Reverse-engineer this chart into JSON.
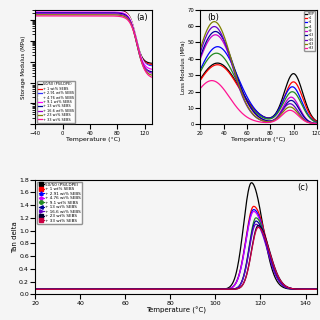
{
  "labels": [
    "50/50 (PS/LDPE)",
    "+ 1 wt% SEBS",
    "+ 2.91 wt% SEBS",
    "+ 4.76 wt% SEBS",
    "+ 9.1 wt% SEBS",
    "+ 13 wt% SEBS",
    "+ 16.6 wt% SEBS",
    "+ 23 wt% SEBS",
    "+ 33 wt% SEBS"
  ],
  "colors_a": [
    "black",
    "red",
    "#3333ff",
    "white",
    "#ff00ff",
    "#000099",
    "#9900cc",
    "#808000",
    "#ff1493"
  ],
  "colors_b": [
    "black",
    "red",
    "blue",
    "#228B22",
    "#cc00cc",
    "#000099",
    "#6600cc",
    "#808000",
    "#ff1493"
  ],
  "colors_c": [
    "black",
    "red",
    "blue",
    "#cc00ff",
    "#228B22",
    "#000099",
    "#6600cc",
    "#000033",
    "#cc0044"
  ],
  "markers_c": [
    "s",
    "s",
    "^",
    "p",
    "o",
    "<",
    ">",
    "s",
    "s"
  ],
  "background": "#f5f5f5",
  "panel_a": {
    "title": "(a)",
    "xlabel": "Temperature (°C)",
    "xlim": [
      -40,
      130
    ],
    "ylim_log": [
      10000000.0,
      3000000000.0
    ],
    "xticks": [
      -40,
      0,
      40,
      80,
      120
    ]
  },
  "panel_b": {
    "title": "(b)",
    "xlabel": "Temperature (°C)",
    "ylabel": "Loss Modulus (MPa)",
    "xlim": [
      20,
      120
    ],
    "ylim": [
      0,
      70
    ],
    "xticks": [
      20,
      40,
      60,
      80,
      100,
      120
    ]
  },
  "panel_c": {
    "title": "(c)",
    "xlabel": "Temperature (°C)",
    "ylabel": "Tan delta",
    "xlim": [
      20,
      145
    ],
    "ylim": [
      0.0,
      1.8
    ],
    "xticks": [
      20,
      40,
      60,
      80,
      100,
      120,
      140
    ],
    "yticks": [
      0.0,
      0.2,
      0.4,
      0.6,
      0.8,
      1.0,
      1.2,
      1.4,
      1.6,
      1.8
    ]
  }
}
